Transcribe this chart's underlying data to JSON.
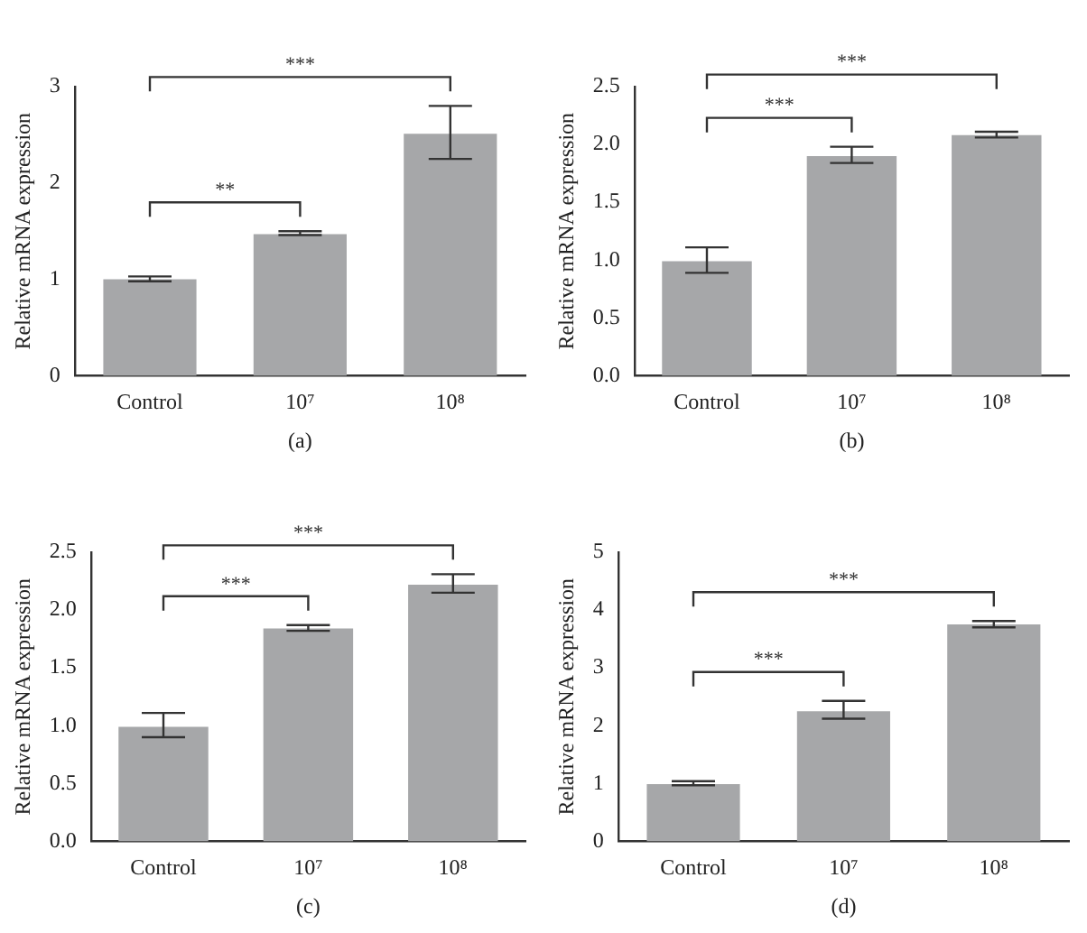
{
  "chart_data": [
    {
      "type": "bar",
      "xlabel": "(a)",
      "ylabel": "Relative mRNA expression",
      "categories": [
        "Control",
        "10⁷",
        "10⁸"
      ],
      "values": [
        1.0,
        1.47,
        2.51
      ],
      "errors": [
        [
          0.98,
          1.03
        ],
        [
          1.46,
          1.5
        ],
        [
          2.25,
          2.8
        ]
      ],
      "color": "#a6a7a9",
      "ylim": [
        0,
        3
      ],
      "yticks": [
        0,
        1,
        2,
        3
      ],
      "grid": false,
      "legend": false,
      "annotations": [
        "**",
        "***"
      ]
    },
    {
      "type": "bar",
      "xlabel": "(b)",
      "ylabel": "Relative mRNA expression",
      "categories": [
        "Control",
        "10⁷",
        "10⁸"
      ],
      "values": [
        0.99,
        1.9,
        2.08
      ],
      "errors": [
        [
          0.89,
          1.11
        ],
        [
          1.84,
          1.98
        ],
        [
          2.06,
          2.11
        ]
      ],
      "color": "#a6a7a9",
      "ylim": [
        0,
        2.5
      ],
      "yticks": [
        {
          "value": 0,
          "label": "0.0"
        },
        0.5,
        {
          "value": 1,
          "label": "1.0"
        },
        1.5,
        {
          "value": 2,
          "label": "2.0"
        },
        2.5
      ],
      "grid": false,
      "legend": false,
      "annotations": [
        "***",
        "***"
      ]
    },
    {
      "type": "bar",
      "xlabel": "(c)",
      "ylabel": "Relative mRNA expression",
      "categories": [
        "Control",
        "10⁷",
        "10⁸"
      ],
      "values": [
        0.99,
        1.84,
        2.22
      ],
      "errors": [
        [
          0.9,
          1.11
        ],
        [
          1.82,
          1.87
        ],
        [
          2.15,
          2.31
        ]
      ],
      "color": "#a6a7a9",
      "ylim": [
        0,
        2.5
      ],
      "yticks": [
        {
          "value": 0,
          "label": "0.0"
        },
        0.5,
        {
          "value": 1,
          "label": "1.0"
        },
        1.5,
        {
          "value": 2,
          "label": "2.0"
        },
        2.5
      ],
      "grid": false,
      "legend": false,
      "annotations": [
        "***",
        "***"
      ]
    },
    {
      "type": "bar",
      "xlabel": "(d)",
      "ylabel": "Relative mRNA expression",
      "categories": [
        "Control",
        "10⁷",
        "10⁸"
      ],
      "values": [
        0.99,
        2.25,
        3.75
      ],
      "errors": [
        [
          0.97,
          1.04
        ],
        [
          2.12,
          2.43
        ],
        [
          3.7,
          3.81
        ]
      ],
      "color": "#a6a7a9",
      "ylim": [
        0,
        5
      ],
      "yticks": [
        0,
        1,
        2,
        3,
        4,
        5
      ],
      "grid": false,
      "legend": false,
      "annotations": [
        "***",
        "***"
      ]
    }
  ]
}
